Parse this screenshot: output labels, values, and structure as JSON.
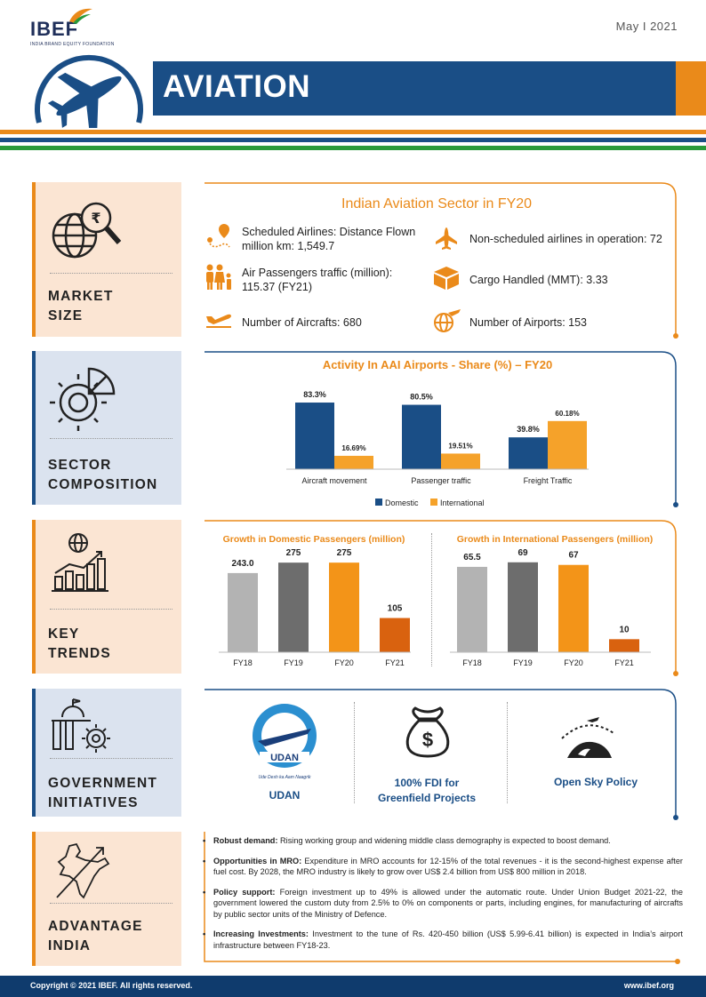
{
  "header": {
    "logo": "IBEF",
    "logo_sub": "INDIA BRAND EQUITY FOUNDATION",
    "date": "May  I  2021",
    "title": "AVIATION"
  },
  "sections": {
    "market_size": [
      "MARKET",
      "SIZE"
    ],
    "sector_composition": [
      "SECTOR",
      "COMPOSITION"
    ],
    "key_trends": [
      "KEY",
      "TRENDS"
    ],
    "government_initiatives": [
      "GOVERNMENT",
      "INITIATIVES"
    ],
    "advantage_india": [
      "ADVANTAGE",
      "INDIA"
    ]
  },
  "market_size": {
    "title": "Indian Aviation Sector  in FY20",
    "items": [
      "Scheduled Airlines: Distance Flown million km: 1,549.7",
      "Non-scheduled airlines in operation: 72",
      "Air Passengers traffic (million): 115.37 (FY21)",
      "Cargo Handled (MMT): 3.33",
      "Number of Aircrafts: 680",
      "Number of Airports: 153"
    ]
  },
  "colors": {
    "navy": "#1a4e86",
    "orange": "#ea8a1a",
    "light_orange": "#f5a22a",
    "grey": "#b3b3b3",
    "dark_grey": "#6d6d6d"
  },
  "chart_data": [
    {
      "type": "bar",
      "title": "Activity In AAI Airports - Share (%) – FY20",
      "categories": [
        "Aircraft movement",
        "Passenger traffic",
        "Freight Traffic"
      ],
      "series": [
        {
          "name": "Domestic",
          "values": [
            83.3,
            80.5,
            39.8
          ],
          "labels": [
            "83.3%",
            "80.5%",
            "39.8%"
          ]
        },
        {
          "name": "International",
          "values": [
            16.69,
            19.51,
            60.18
          ],
          "labels": [
            "16.69%",
            "19.51%",
            "60.18%"
          ]
        }
      ],
      "ylim": [
        0,
        100
      ],
      "legend": "bottom"
    },
    {
      "type": "bar",
      "title": "Growth in Domestic Passengers (million)",
      "categories": [
        "FY18",
        "FY19",
        "FY20",
        "FY21"
      ],
      "values": [
        243.0,
        275,
        275,
        105
      ],
      "labels": [
        "243.0",
        "275",
        "275",
        "105"
      ],
      "ylim": [
        0,
        300
      ]
    },
    {
      "type": "bar",
      "title": "Growth in International Passengers (million)",
      "categories": [
        "FY18",
        "FY19",
        "FY20",
        "FY21"
      ],
      "values": [
        65.5,
        69,
        67,
        10
      ],
      "labels": [
        "65.5",
        "69",
        "67",
        "10"
      ],
      "ylim": [
        0,
        75
      ]
    }
  ],
  "initiatives": {
    "udan": "UDAN",
    "udan_logo_text": "UDAN",
    "udan_logo_tagline": "Ude Desh ka Aam Naagrik",
    "fdi": [
      "100% FDI for",
      "Greenfield Projects"
    ],
    "open_sky": "Open Sky Policy"
  },
  "advantage": [
    {
      "head": "Robust demand:",
      "text": " Rising working group and widening middle class demography is expected to boost demand."
    },
    {
      "head": "Opportunities in MRO:",
      "text": " Expenditure in MRO accounts for 12-15% of the total revenues - it is the second-highest expense after fuel cost. By 2028, the MRO industry is likely to grow over US$ 2.4 billion from US$ 800 million in 2018."
    },
    {
      "head": "Policy support:",
      "text": " Foreign investment up to 49% is allowed under the automatic route. Under Union Budget 2021-22, the government lowered the custom duty from 2.5% to 0% on components or parts, including engines, for manufacturing of aircrafts by public sector units of the Ministry of Defence."
    },
    {
      "head": "Increasing Investments:",
      "text": " Investment to the tune of Rs. 420-450 billion (US$ 5.99-6.41 billion) is expected in India’s airport infrastructure between FY18-23."
    }
  ],
  "footer": {
    "left": "Copyright © 2021 IBEF. All rights reserved.",
    "right": "www.ibef.org"
  }
}
